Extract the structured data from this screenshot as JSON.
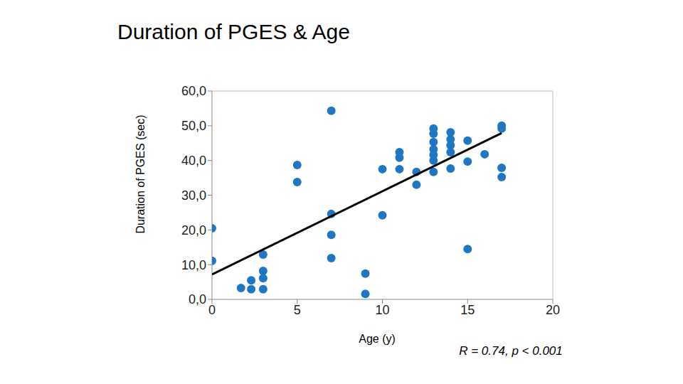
{
  "chart_data": {
    "type": "scatter",
    "title": "Duration of PGES & Age",
    "x_label": "Age (y)",
    "y_label": "Duration of PGES (sec)",
    "annotation": "R = 0.74, p < 0.001",
    "x": [
      0,
      0,
      1.7,
      2.3,
      2.3,
      3,
      3,
      3,
      3,
      5,
      5,
      7,
      7,
      7,
      7,
      9,
      9,
      10,
      10,
      11,
      11,
      11,
      12,
      12,
      13,
      13,
      13,
      13,
      13,
      13,
      13,
      14,
      14,
      14,
      14,
      14,
      15,
      15,
      15,
      16,
      17,
      17,
      17,
      17
    ],
    "values": [
      20.5,
      11.1,
      3.3,
      5.5,
      2.9,
      12.9,
      8.2,
      6.1,
      2.9,
      38.7,
      33.8,
      54.3,
      24.6,
      18.6,
      11.9,
      7.4,
      1.6,
      37.5,
      24.2,
      42.4,
      40.8,
      37.5,
      36.7,
      33.0,
      49.2,
      47.7,
      45.3,
      43.2,
      41.6,
      40.0,
      36.7,
      48.1,
      46.1,
      44.4,
      42.4,
      37.7,
      45.7,
      39.7,
      14.5,
      41.8,
      50.0,
      49.2,
      37.9,
      35.2
    ],
    "color": "#1f77c4",
    "marker": "circle",
    "trend_line": {
      "x": [
        0,
        17
      ],
      "values": [
        7.2,
        47.9
      ],
      "color": "#000000",
      "line_style": "solid"
    },
    "xlim": [
      0,
      20
    ],
    "xticks": [
      0,
      5,
      10,
      15,
      20
    ],
    "ylim": [
      0,
      60
    ],
    "yticks": [
      {
        "value": 0,
        "label": "0,0"
      },
      {
        "value": 10,
        "label": "10,0"
      },
      {
        "value": 20,
        "label": "20,0"
      },
      {
        "value": 30,
        "label": "30,0"
      },
      {
        "value": 40,
        "label": "40,0"
      },
      {
        "value": 50,
        "label": "50,0"
      },
      {
        "value": 60,
        "label": "60,0"
      }
    ],
    "grid": false
  }
}
